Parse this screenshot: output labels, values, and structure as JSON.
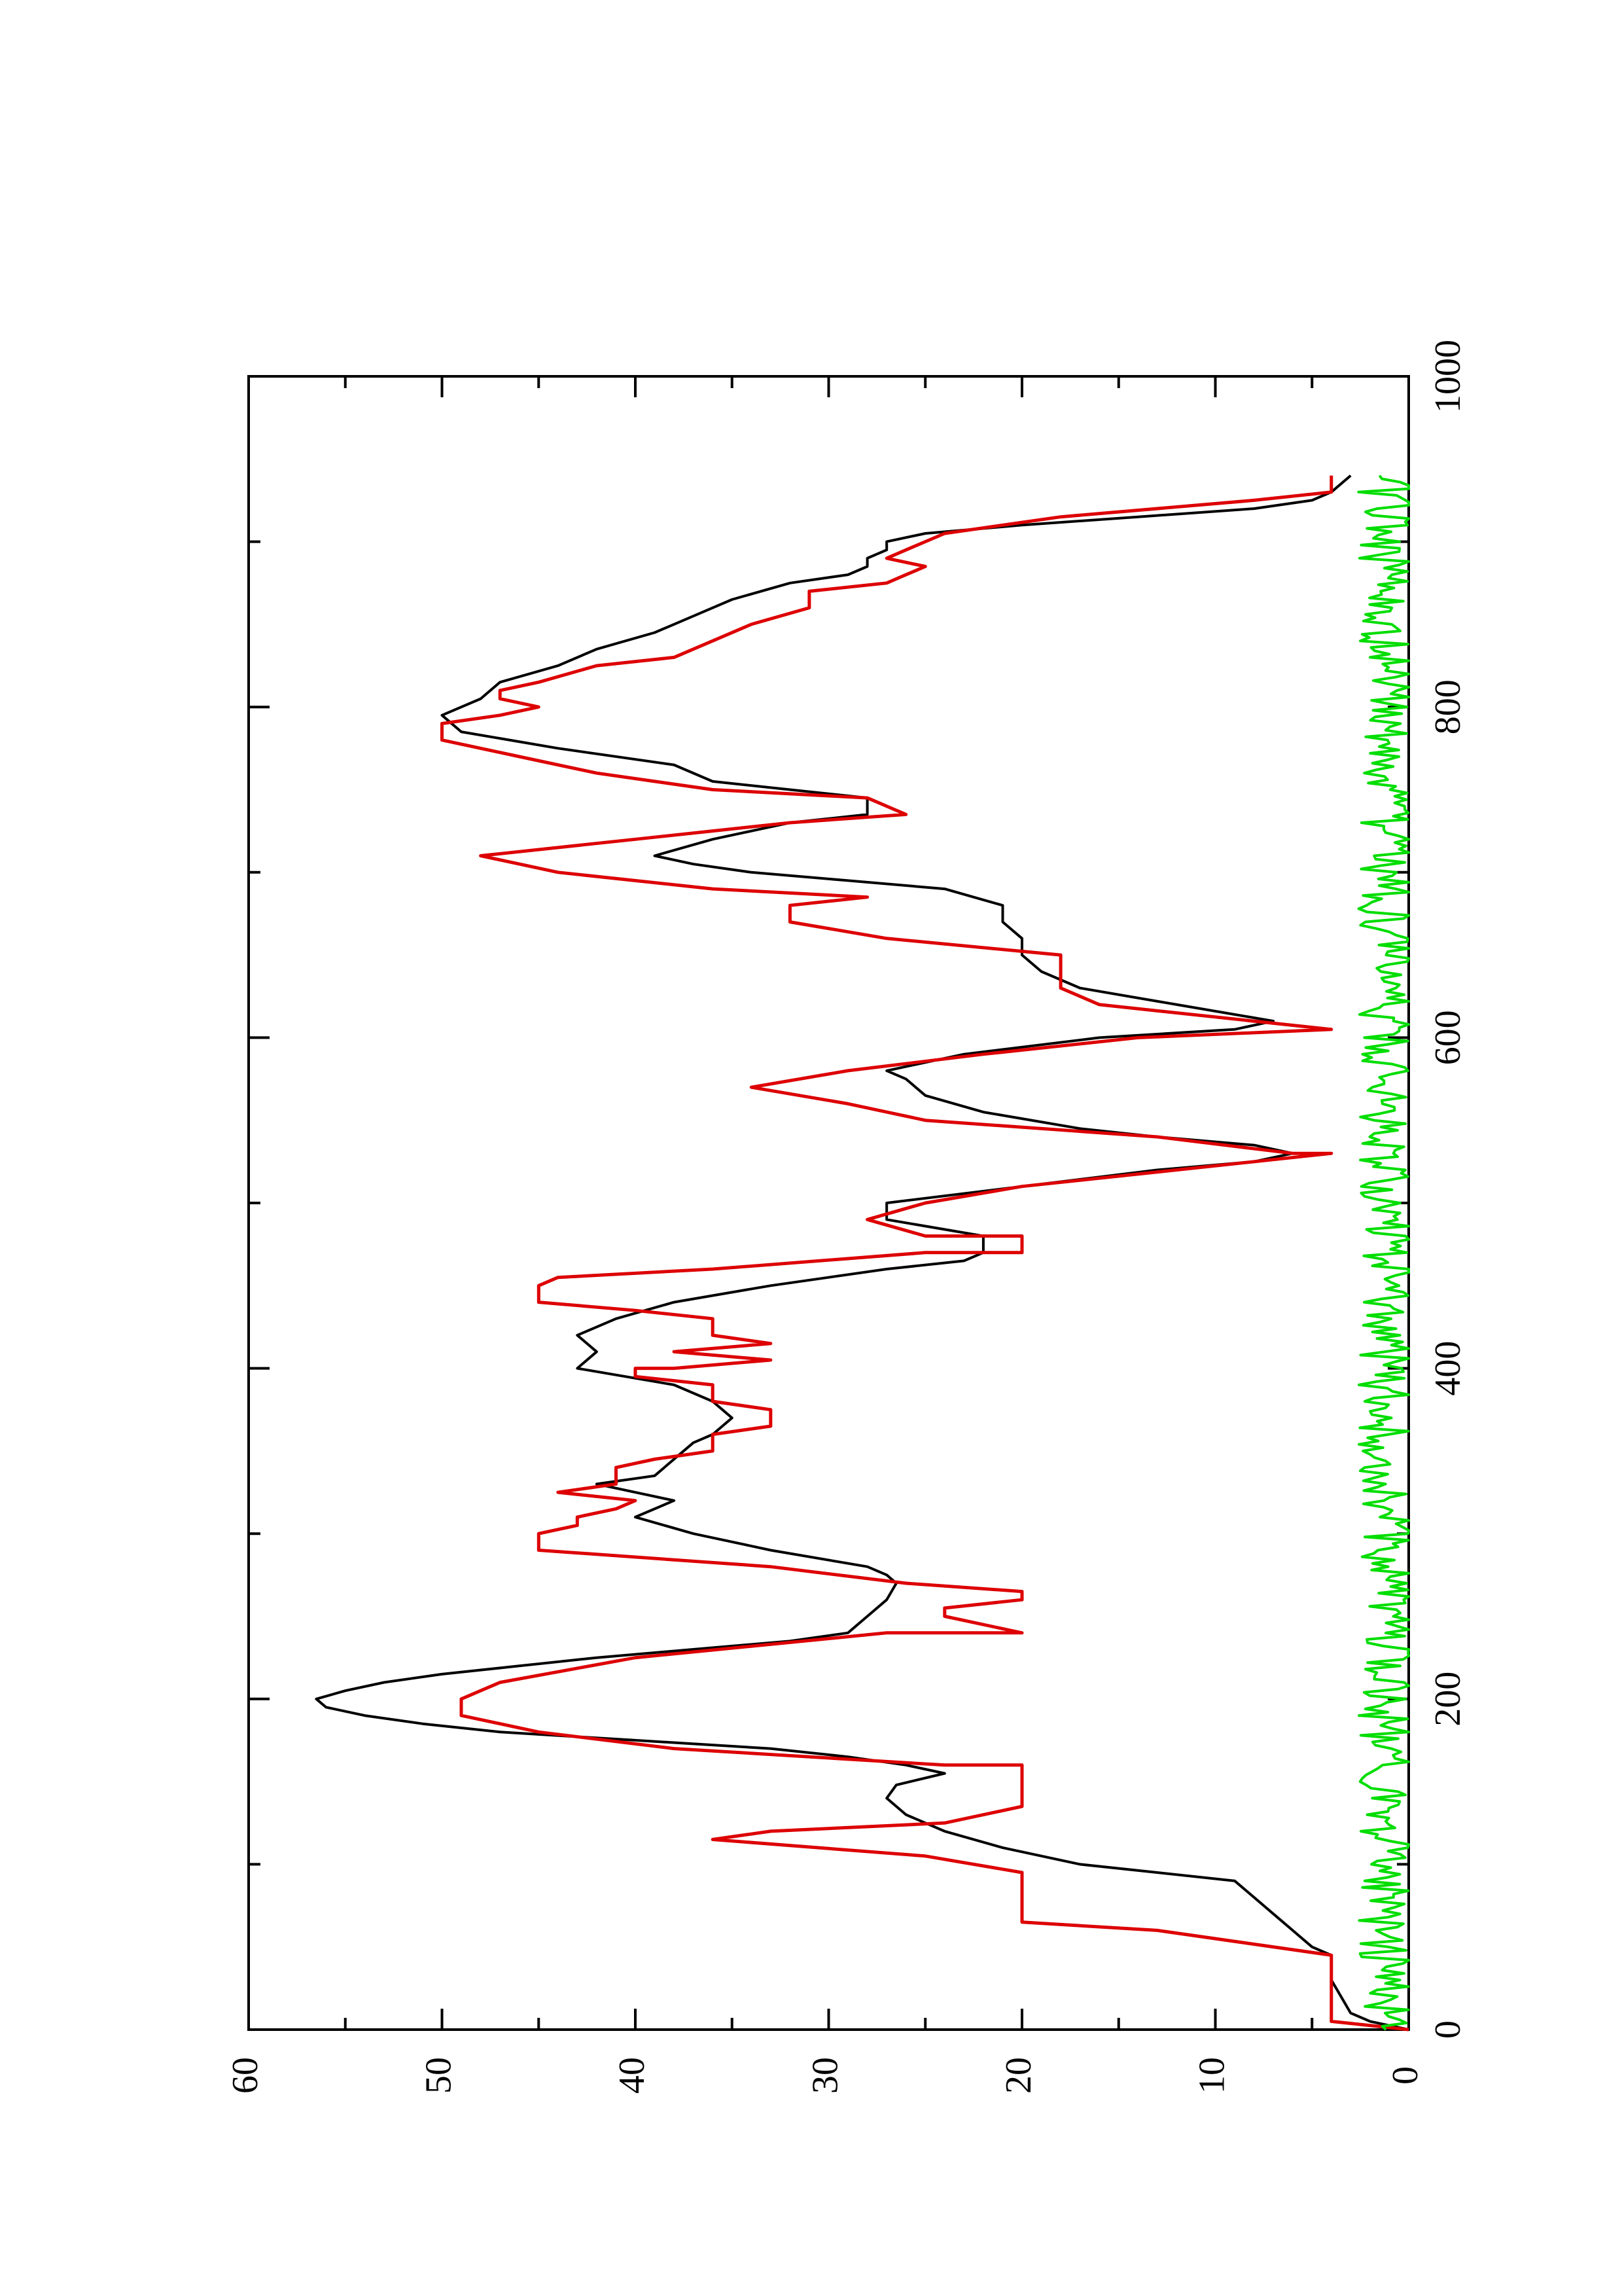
{
  "chart_data": {
    "type": "line",
    "orientation": "rotated-90-clockwise",
    "title": "",
    "xlabel": "",
    "ylabel": "",
    "xlim": [
      0,
      1000
    ],
    "ylim": [
      0,
      60
    ],
    "x_ticks": [
      0,
      200,
      400,
      600,
      800,
      1000
    ],
    "y_ticks": [
      0,
      10,
      20,
      30,
      40,
      50,
      60
    ],
    "x_tick_labels": [
      "0",
      "200",
      "400",
      "600",
      "800",
      "1000"
    ],
    "y_tick_labels": [
      "0",
      "10",
      "20",
      "30",
      "40",
      "50",
      "60"
    ],
    "grid": false,
    "legend": "none",
    "series": [
      {
        "color": "#000000",
        "points": [
          [
            0,
            0
          ],
          [
            5,
            2
          ],
          [
            10,
            3
          ],
          [
            30,
            4
          ],
          [
            45,
            4
          ],
          [
            50,
            5
          ],
          [
            60,
            6
          ],
          [
            70,
            7
          ],
          [
            80,
            8
          ],
          [
            90,
            9
          ],
          [
            95,
            13
          ],
          [
            100,
            17
          ],
          [
            110,
            21
          ],
          [
            120,
            24
          ],
          [
            130,
            26
          ],
          [
            140,
            27
          ],
          [
            148,
            26.5
          ],
          [
            155,
            24
          ],
          [
            160,
            26
          ],
          [
            165,
            29
          ],
          [
            170,
            33
          ],
          [
            175,
            40
          ],
          [
            180,
            47
          ],
          [
            185,
            51
          ],
          [
            190,
            54
          ],
          [
            195,
            56
          ],
          [
            200,
            56.5
          ],
          [
            205,
            55
          ],
          [
            210,
            53
          ],
          [
            215,
            50
          ],
          [
            220,
            46
          ],
          [
            225,
            42
          ],
          [
            230,
            37
          ],
          [
            235,
            32
          ],
          [
            240,
            29
          ],
          [
            245,
            28.5
          ],
          [
            250,
            28
          ],
          [
            260,
            27
          ],
          [
            270,
            26.5
          ],
          [
            275,
            27
          ],
          [
            280,
            28
          ],
          [
            290,
            33
          ],
          [
            295,
            35
          ],
          [
            300,
            37
          ],
          [
            310,
            40
          ],
          [
            320,
            38
          ],
          [
            330,
            42
          ],
          [
            335,
            39
          ],
          [
            345,
            38
          ],
          [
            355,
            37
          ],
          [
            360,
            36
          ],
          [
            370,
            35
          ],
          [
            380,
            36
          ],
          [
            390,
            38
          ],
          [
            400,
            43
          ],
          [
            410,
            42
          ],
          [
            420,
            43
          ],
          [
            430,
            41
          ],
          [
            440,
            38
          ],
          [
            450,
            33
          ],
          [
            460,
            27
          ],
          [
            465,
            23
          ],
          [
            470,
            22
          ],
          [
            480,
            22
          ],
          [
            490,
            27
          ],
          [
            500,
            27
          ],
          [
            510,
            20
          ],
          [
            520,
            13
          ],
          [
            525,
            8
          ],
          [
            530,
            6
          ],
          [
            535,
            8
          ],
          [
            540,
            13
          ],
          [
            545,
            17
          ],
          [
            555,
            22
          ],
          [
            565,
            25
          ],
          [
            575,
            26
          ],
          [
            580,
            27
          ],
          [
            590,
            23
          ],
          [
            600,
            16
          ],
          [
            605,
            9
          ],
          [
            610,
            7
          ],
          [
            620,
            12
          ],
          [
            630,
            17
          ],
          [
            640,
            19
          ],
          [
            650,
            20
          ],
          [
            660,
            20
          ],
          [
            670,
            21
          ],
          [
            680,
            21
          ],
          [
            690,
            24
          ],
          [
            695,
            29
          ],
          [
            700,
            34
          ],
          [
            705,
            37
          ],
          [
            710,
            39
          ],
          [
            720,
            36
          ],
          [
            730,
            32
          ],
          [
            735,
            28
          ],
          [
            745,
            28
          ],
          [
            750,
            32
          ],
          [
            755,
            36
          ],
          [
            765,
            38
          ],
          [
            775,
            44
          ],
          [
            785,
            49
          ],
          [
            795,
            50
          ],
          [
            805,
            48
          ],
          [
            815,
            47
          ],
          [
            825,
            44
          ],
          [
            835,
            42
          ],
          [
            845,
            39
          ],
          [
            855,
            37
          ],
          [
            865,
            35
          ],
          [
            875,
            32
          ],
          [
            880,
            29
          ],
          [
            885,
            28
          ],
          [
            890,
            28
          ],
          [
            895,
            27
          ],
          [
            900,
            27
          ],
          [
            905,
            25
          ],
          [
            910,
            20
          ],
          [
            915,
            14
          ],
          [
            920,
            8
          ],
          [
            925,
            5
          ],
          [
            930,
            4
          ],
          [
            940,
            3
          ]
        ]
      },
      {
        "color": "#dd0000",
        "points": [
          [
            0,
            0
          ],
          [
            5,
            4
          ],
          [
            45,
            4
          ],
          [
            60,
            13
          ],
          [
            65,
            20
          ],
          [
            95,
            20
          ],
          [
            105,
            25
          ],
          [
            115,
            36
          ],
          [
            120,
            33
          ],
          [
            125,
            24
          ],
          [
            135,
            20
          ],
          [
            145,
            20
          ],
          [
            160,
            20
          ],
          [
            160,
            24
          ],
          [
            170,
            38
          ],
          [
            180,
            45
          ],
          [
            190,
            49
          ],
          [
            200,
            49
          ],
          [
            210,
            47
          ],
          [
            225,
            40
          ],
          [
            240,
            27
          ],
          [
            240,
            20
          ],
          [
            250,
            24
          ],
          [
            255,
            24
          ],
          [
            260,
            20
          ],
          [
            265,
            20
          ],
          [
            270,
            26
          ],
          [
            280,
            33
          ],
          [
            290,
            45
          ],
          [
            300,
            45
          ],
          [
            305,
            43
          ],
          [
            310,
            43
          ],
          [
            315,
            41
          ],
          [
            320,
            40
          ],
          [
            325,
            44
          ],
          [
            330,
            41
          ],
          [
            340,
            41
          ],
          [
            345,
            39
          ],
          [
            350,
            36
          ],
          [
            360,
            36
          ],
          [
            365,
            33
          ],
          [
            375,
            33
          ],
          [
            380,
            36
          ],
          [
            390,
            36
          ],
          [
            395,
            40
          ],
          [
            400,
            40
          ],
          [
            400,
            38
          ],
          [
            405,
            33
          ],
          [
            410,
            38
          ],
          [
            415,
            33
          ],
          [
            420,
            36
          ],
          [
            430,
            36
          ],
          [
            435,
            40
          ],
          [
            440,
            45
          ],
          [
            450,
            45
          ],
          [
            455,
            44
          ],
          [
            460,
            36
          ],
          [
            470,
            25
          ],
          [
            470,
            20
          ],
          [
            480,
            20
          ],
          [
            480,
            25
          ],
          [
            490,
            28
          ],
          [
            500,
            25
          ],
          [
            510,
            20
          ],
          [
            520,
            12
          ],
          [
            530,
            4
          ],
          [
            530,
            6
          ],
          [
            540,
            13
          ],
          [
            550,
            25
          ],
          [
            560,
            29
          ],
          [
            570,
            34
          ],
          [
            580,
            29
          ],
          [
            590,
            22
          ],
          [
            600,
            14
          ],
          [
            605,
            4
          ],
          [
            620,
            16
          ],
          [
            630,
            18
          ],
          [
            640,
            18
          ],
          [
            650,
            18
          ],
          [
            660,
            27
          ],
          [
            670,
            32
          ],
          [
            680,
            32
          ],
          [
            685,
            28
          ],
          [
            690,
            36
          ],
          [
            700,
            44
          ],
          [
            710,
            48
          ],
          [
            720,
            40
          ],
          [
            730,
            32
          ],
          [
            735,
            26
          ],
          [
            745,
            28
          ],
          [
            750,
            36
          ],
          [
            760,
            42
          ],
          [
            770,
            46
          ],
          [
            780,
            50
          ],
          [
            790,
            50
          ],
          [
            795,
            47
          ],
          [
            800,
            45
          ],
          [
            805,
            47
          ],
          [
            810,
            47
          ],
          [
            815,
            45
          ],
          [
            825,
            42
          ],
          [
            830,
            38
          ],
          [
            840,
            36
          ],
          [
            850,
            34
          ],
          [
            860,
            31
          ],
          [
            870,
            31
          ],
          [
            875,
            27
          ],
          [
            880,
            26
          ],
          [
            885,
            25
          ],
          [
            890,
            27
          ],
          [
            895,
            26
          ],
          [
            905,
            24
          ],
          [
            915,
            18
          ],
          [
            925,
            8
          ],
          [
            930,
            4
          ],
          [
            940,
            4
          ]
        ]
      },
      {
        "color": "#00dd00",
        "points": "noise-baseline",
        "x_range": [
          0,
          940
        ],
        "mean": 1.2,
        "amplitude": 1.4
      }
    ]
  }
}
